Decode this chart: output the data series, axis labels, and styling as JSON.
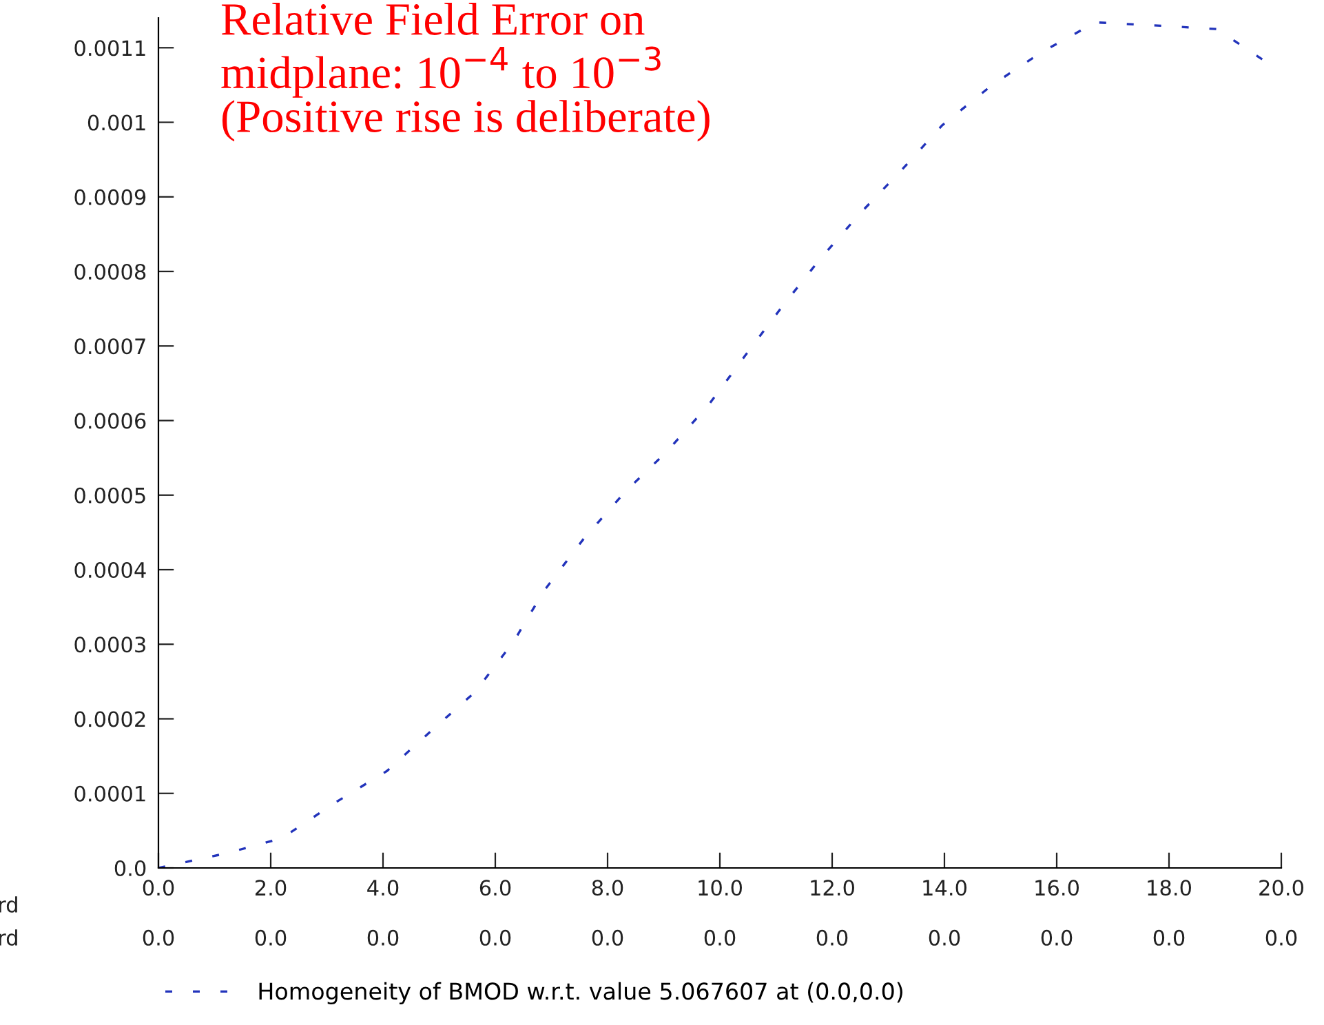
{
  "chart_data": {
    "type": "line",
    "title": "Relative Field Error on\nmidplane: 10$^{−4}$ to 10$^{−3}$\n(Positive rise is deliberate)",
    "x": [
      0,
      1.23,
      2.2,
      3.2,
      4.07,
      4.86,
      5.64,
      6.33,
      6.87,
      7.58,
      8.32,
      9.05,
      9.8,
      10.45,
      11.09,
      11.8,
      12.5,
      13.25,
      13.96,
      14.85,
      15.73,
      16.69,
      17.74,
      18.85,
      19.75
    ],
    "series": [
      {
        "name": "Homogeneity of BMOD w.r.t. value 5.067607 at (0.0,0.0)",
        "color": "#2233bb",
        "values": [
          0,
          2e-05,
          4e-05,
          9e-05,
          0.00013,
          0.000184,
          0.000236,
          0.000304,
          0.000372,
          0.000442,
          0.000505,
          0.000558,
          0.000621,
          0.000687,
          0.000751,
          0.000818,
          0.000878,
          0.000937,
          0.000996,
          0.00105,
          0.001094,
          0.001134,
          0.00113,
          0.001125,
          0.00108
        ]
      }
    ],
    "xlim": [
      0,
      20
    ],
    "ylim": [
      0,
      0.00114
    ],
    "xticks": [
      {
        "value": 0,
        "label": "0.0"
      },
      {
        "value": 2,
        "label": "2.0"
      },
      {
        "value": 4,
        "label": "4.0"
      },
      {
        "value": 6,
        "label": "6.0"
      },
      {
        "value": 8,
        "label": "8.0"
      },
      {
        "value": 10,
        "label": "10.0"
      },
      {
        "value": 12,
        "label": "12.0"
      },
      {
        "value": 14,
        "label": "14.0"
      },
      {
        "value": 16,
        "label": "16.0"
      },
      {
        "value": 18,
        "label": "18.0"
      },
      {
        "value": 20,
        "label": "20.0"
      }
    ],
    "yticks": [
      {
        "value": 0,
        "label": "0.0"
      },
      0.0001,
      0.0002,
      0.0003,
      0.0004,
      0.0005,
      0.0006,
      0.0007,
      0.0008,
      0.0009,
      0.001,
      0.0011
    ],
    "annotations": [
      "rd",
      "rd",
      "0.0",
      "0.0",
      "0.0",
      "0.0",
      "0.0",
      "0.0",
      "0.0",
      "0.0",
      "0.0",
      "0.0",
      "0.0"
    ],
    "grid": false,
    "legend": "bottom",
    "line_style": "dashed",
    "marker": "none"
  }
}
